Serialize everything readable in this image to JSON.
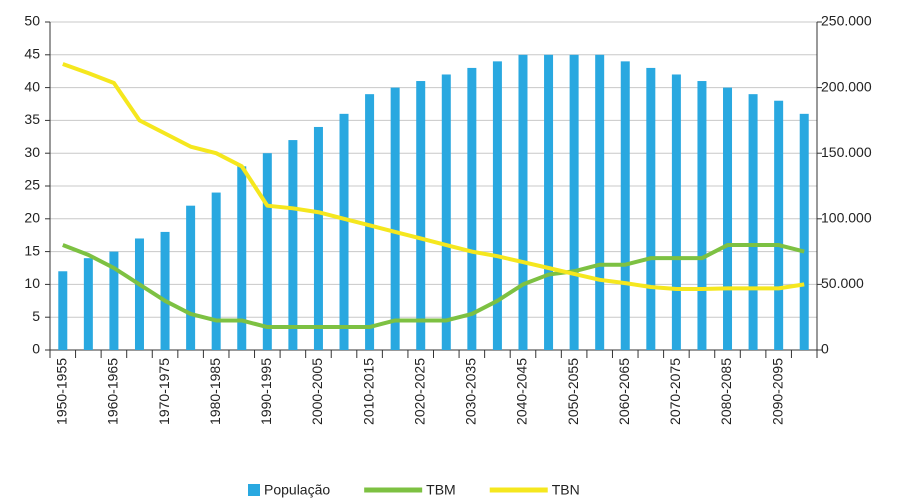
{
  "chart_data": {
    "type": "bar",
    "categories": [
      "1950-1955",
      null,
      "1960-1965",
      null,
      "1970-1975",
      null,
      "1980-1985",
      null,
      "1990-1995",
      null,
      "2000-2005",
      null,
      "2010-2015",
      null,
      "2020-2025",
      null,
      "2030-2035",
      null,
      "2040-2045",
      null,
      "2050-2055",
      null,
      "2060-2065",
      null,
      "2070-2075",
      null,
      "2080-2085",
      null,
      "2090-2095",
      null
    ],
    "series": [
      {
        "name": "População",
        "type": "bar",
        "axis": "y2",
        "color": "#29a8e0",
        "values": [
          60000,
          70000,
          75000,
          85000,
          90000,
          110000,
          120000,
          140000,
          150000,
          160000,
          170000,
          180000,
          195000,
          200000,
          205000,
          210000,
          215000,
          220000,
          225000,
          225000,
          225000,
          225000,
          220000,
          215000,
          210000,
          205000,
          200000,
          195000,
          190000,
          180000
        ]
      },
      {
        "name": "TBM",
        "type": "line",
        "color": "#7dc142",
        "values": [
          16,
          14.5,
          12.5,
          10,
          7.5,
          5.5,
          4.5,
          4.5,
          3.5,
          3.5,
          3.5,
          3.5,
          3.5,
          4.5,
          4.5,
          4.5,
          5.5,
          7.5,
          10,
          11.5,
          12,
          13,
          13,
          14,
          14,
          14,
          16,
          16,
          16,
          15
        ]
      },
      {
        "name": "TBN",
        "type": "line",
        "color": "#f5e71e",
        "values": [
          43.6,
          42.2,
          40.7,
          35,
          33,
          31,
          30,
          28,
          22,
          21.6,
          21,
          20,
          19,
          18,
          17,
          16,
          15,
          14.3,
          13.4,
          12.5,
          11.6,
          10.7,
          10.2,
          9.6,
          9.3,
          9.3,
          9.4,
          9.4,
          9.4,
          10
        ]
      }
    ],
    "ylim": [
      0,
      50
    ],
    "yticks": [
      0,
      5,
      10,
      15,
      20,
      25,
      30,
      35,
      40,
      45,
      50
    ],
    "y2lim": [
      0,
      250000
    ],
    "y2ticks": [
      0,
      {
        "value": 50000,
        "label": "50.000"
      },
      {
        "value": 100000,
        "label": "100.000"
      },
      {
        "value": 150000,
        "label": "150.000"
      },
      {
        "value": 200000,
        "label": "200.000"
      },
      {
        "value": 250000,
        "label": "250.000"
      }
    ],
    "grid": true,
    "legend": "bottom"
  }
}
